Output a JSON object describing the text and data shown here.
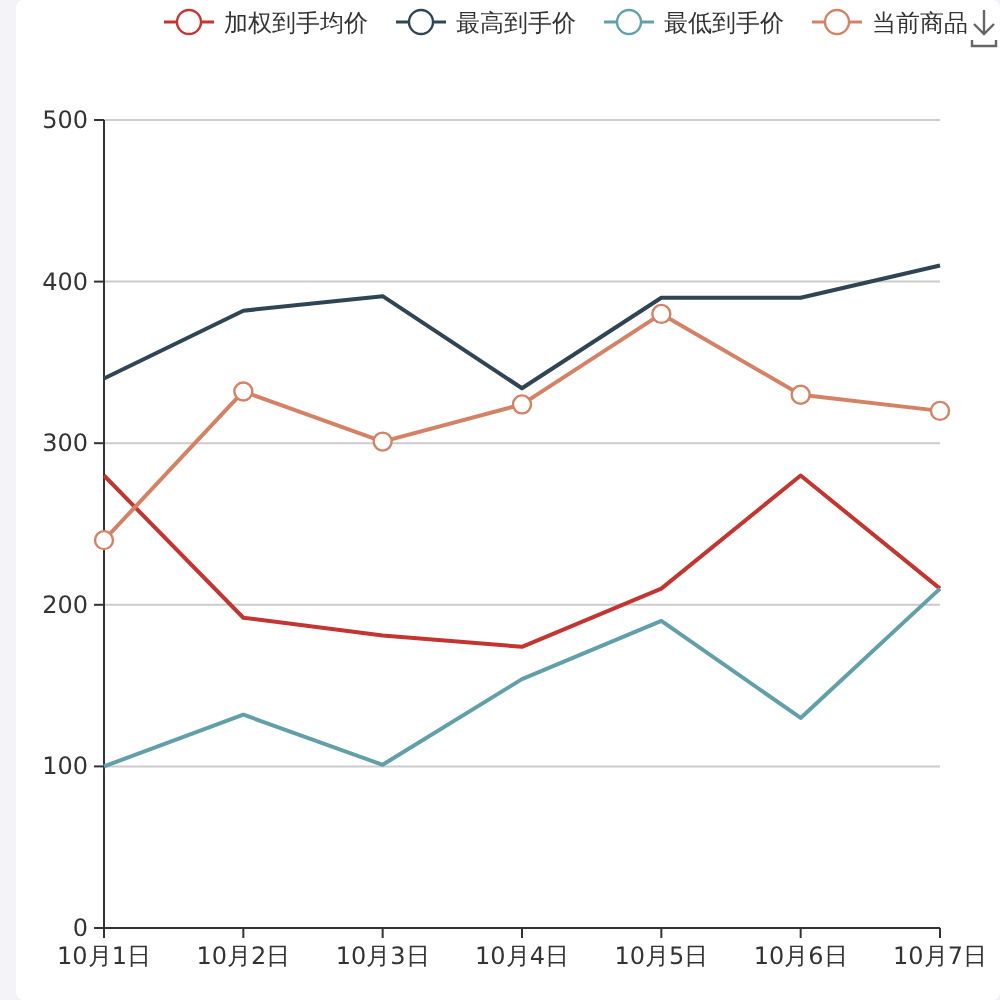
{
  "chart_data": {
    "type": "line",
    "categories": [
      "10月1日",
      "10月2日",
      "10月3日",
      "10月4日",
      "10月5日",
      "10月6日",
      "10月7日"
    ],
    "ylim": [
      0,
      500
    ],
    "yticks": [
      0,
      100,
      200,
      300,
      400,
      500
    ],
    "grid": "y",
    "legend": "top",
    "series": [
      {
        "name": "加权到手均价",
        "color": "#c23531",
        "marker": "none",
        "values": [
          280,
          192,
          181,
          174,
          210,
          280,
          210
        ]
      },
      {
        "name": "最高到手价",
        "color": "#2f4554",
        "marker": "none",
        "values": [
          340,
          382,
          391,
          334,
          390,
          390,
          410
        ]
      },
      {
        "name": "最低到手价",
        "color": "#61a0a8",
        "marker": "none",
        "values": [
          100,
          132,
          101,
          154,
          190,
          130,
          210
        ]
      },
      {
        "name": "当前商品",
        "color": "#d48265",
        "marker": "circle",
        "values": [
          240,
          332,
          301,
          324,
          380,
          330,
          320
        ]
      }
    ]
  }
}
